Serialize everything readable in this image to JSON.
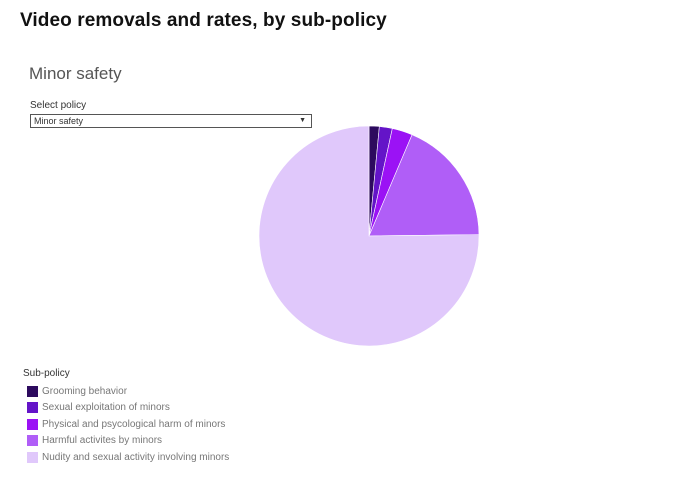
{
  "page": {
    "title": "Video removals and rates, by sub-policy",
    "section_title": "Minor safety"
  },
  "filter": {
    "label": "Select policy",
    "selected": "Minor safety",
    "caret_icon": "chevron-down-icon"
  },
  "chart_data": {
    "type": "pie",
    "title": "Minor safety",
    "legend_title": "Sub-policy",
    "legend_position": "bottom-left",
    "categories": [
      "Grooming behavior",
      "Sexual exploitation of minors",
      "Physical and psycological harm of minors",
      "Harmful activites by minors",
      "Nudity and sexual activity involving minors"
    ],
    "values": [
      1.5,
      1.9,
      3.0,
      18.4,
      75.2
    ],
    "colors": [
      "#2d0a5e",
      "#6414c8",
      "#9b12f5",
      "#b05ef7",
      "#e0c8fb"
    ]
  }
}
